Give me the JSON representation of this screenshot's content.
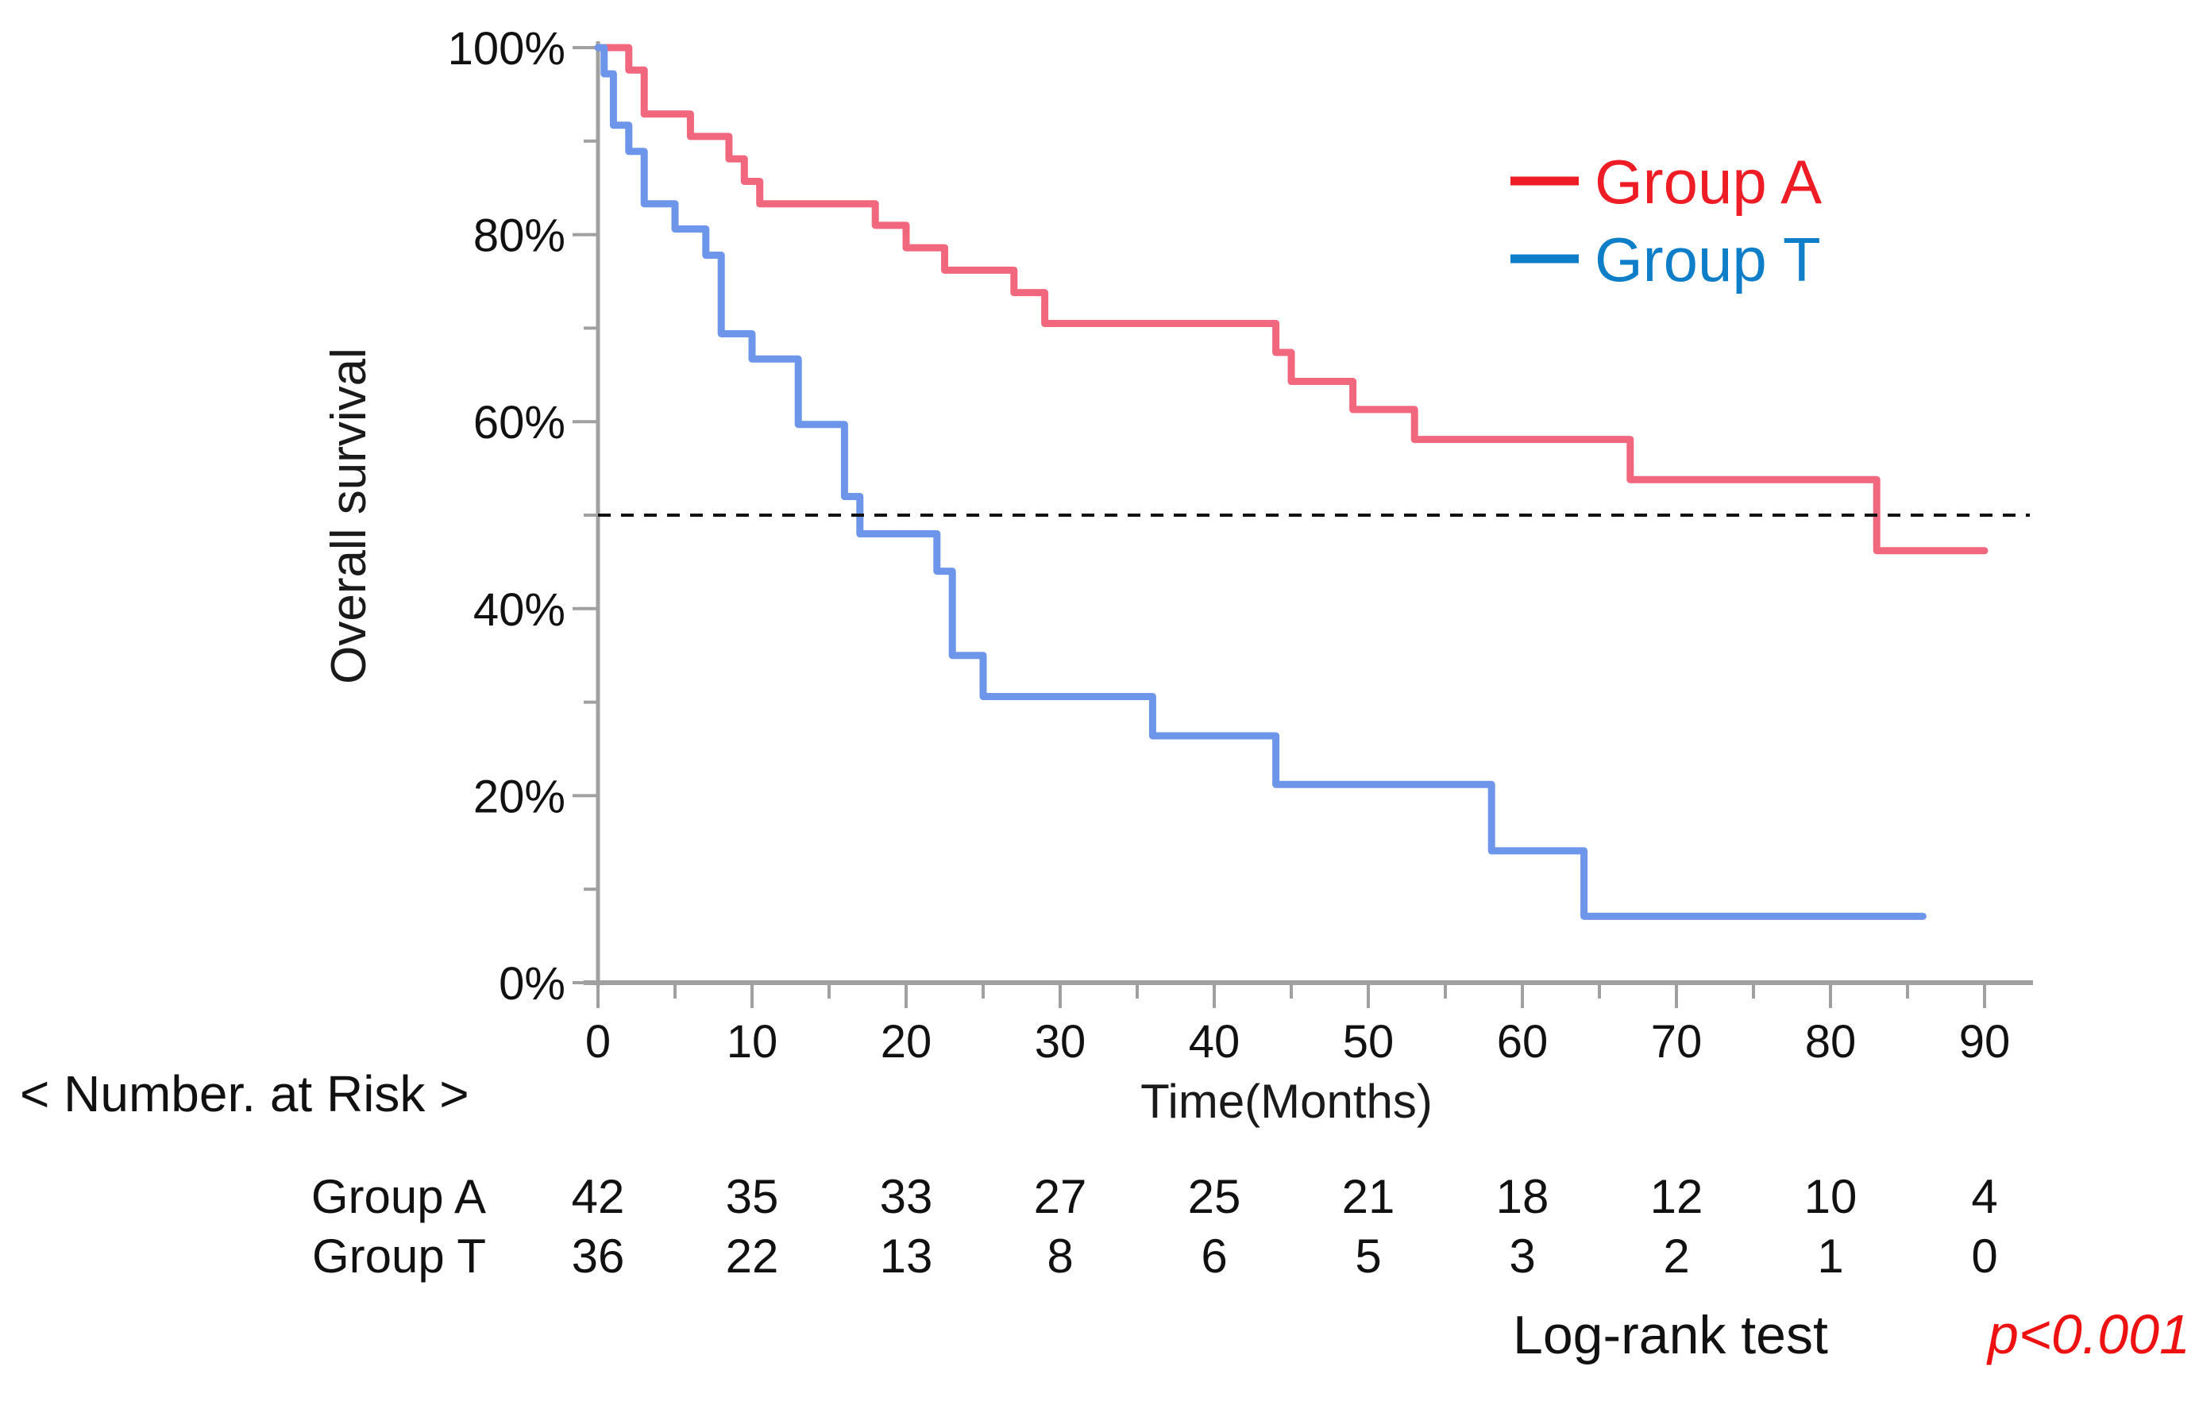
{
  "page": {
    "background": "#ffffff"
  },
  "legend": {
    "position": "top-right",
    "items": [
      {
        "label": "Group A",
        "text_color": "#ee1c25",
        "swatch": "dash-icon"
      },
      {
        "label": "Group T",
        "text_color": "#0e7ec9",
        "swatch": "dash-icon"
      }
    ]
  },
  "chart_data": {
    "type": "line",
    "subtype": "kaplan-meier-step",
    "title": "",
    "xlabel": "Time(Months)",
    "ylabel": "Overall survival",
    "xlim": [
      0,
      90
    ],
    "ylim": [
      0,
      100
    ],
    "grid": false,
    "x_major_ticks": [
      0,
      10,
      20,
      30,
      40,
      50,
      60,
      70,
      80,
      90
    ],
    "x_minor_ticks": [
      5,
      15,
      25,
      35,
      45,
      55,
      65,
      75,
      85
    ],
    "y_major_ticks": [
      {
        "value": 100,
        "label": "100%"
      },
      {
        "value": 80,
        "label": "80%"
      },
      {
        "value": 60,
        "label": "60%"
      },
      {
        "value": 40,
        "label": "40%"
      },
      {
        "value": 20,
        "label": "20%"
      },
      {
        "value": 0,
        "label": "0%"
      }
    ],
    "y_minor_ticks": [
      90,
      70,
      50,
      30,
      10
    ],
    "reference_line_y": 50,
    "legend_position": "top-right",
    "series": [
      {
        "name": "Group A",
        "color": "#f1677d",
        "n_at_start": 42,
        "steps": [
          [
            0,
            100
          ],
          [
            2,
            97.6
          ],
          [
            3,
            92.9
          ],
          [
            6,
            90.5
          ],
          [
            8.5,
            88.1
          ],
          [
            9.5,
            85.7
          ],
          [
            10.5,
            83.3
          ],
          [
            18,
            81.0
          ],
          [
            20,
            78.6
          ],
          [
            22.5,
            76.2
          ],
          [
            27,
            73.8
          ],
          [
            29,
            70.5
          ],
          [
            44,
            67.4
          ],
          [
            45,
            64.3
          ],
          [
            49,
            61.3
          ],
          [
            53,
            58.1
          ],
          [
            67,
            53.8
          ],
          [
            83,
            46.2
          ]
        ],
        "end_time": 90
      },
      {
        "name": "Group T",
        "color": "#6d95e9",
        "n_at_start": 36,
        "steps": [
          [
            0,
            100
          ],
          [
            0.4,
            97.2
          ],
          [
            1,
            91.7
          ],
          [
            2,
            88.9
          ],
          [
            3,
            83.3
          ],
          [
            5,
            80.6
          ],
          [
            7,
            77.8
          ],
          [
            8,
            69.4
          ],
          [
            10,
            66.7
          ],
          [
            13,
            59.7
          ],
          [
            16,
            52.0
          ],
          [
            17,
            48.0
          ],
          [
            22,
            44.0
          ],
          [
            23,
            35.0
          ],
          [
            25,
            30.6
          ],
          [
            36,
            26.4
          ],
          [
            44,
            21.2
          ],
          [
            58,
            14.1
          ],
          [
            64,
            7.1
          ]
        ],
        "end_time": 86
      }
    ]
  },
  "risk_table": {
    "title": "< Number. at Risk >",
    "time_points": [
      0,
      10,
      20,
      30,
      40,
      50,
      60,
      70,
      80,
      90
    ],
    "rows": [
      {
        "label": "Group A",
        "values": [
          42,
          35,
          33,
          27,
          25,
          21,
          18,
          12,
          10,
          4
        ]
      },
      {
        "label": "Group T",
        "values": [
          36,
          22,
          13,
          8,
          6,
          5,
          3,
          2,
          1,
          0
        ]
      }
    ]
  },
  "footer": {
    "test_label": "Log-rank test",
    "p_value": "p<0.001",
    "p_value_color": "#ee1111"
  },
  "colors": {
    "axis": "#a0a0a0",
    "text": "#111111",
    "reference_line": "#111111"
  }
}
